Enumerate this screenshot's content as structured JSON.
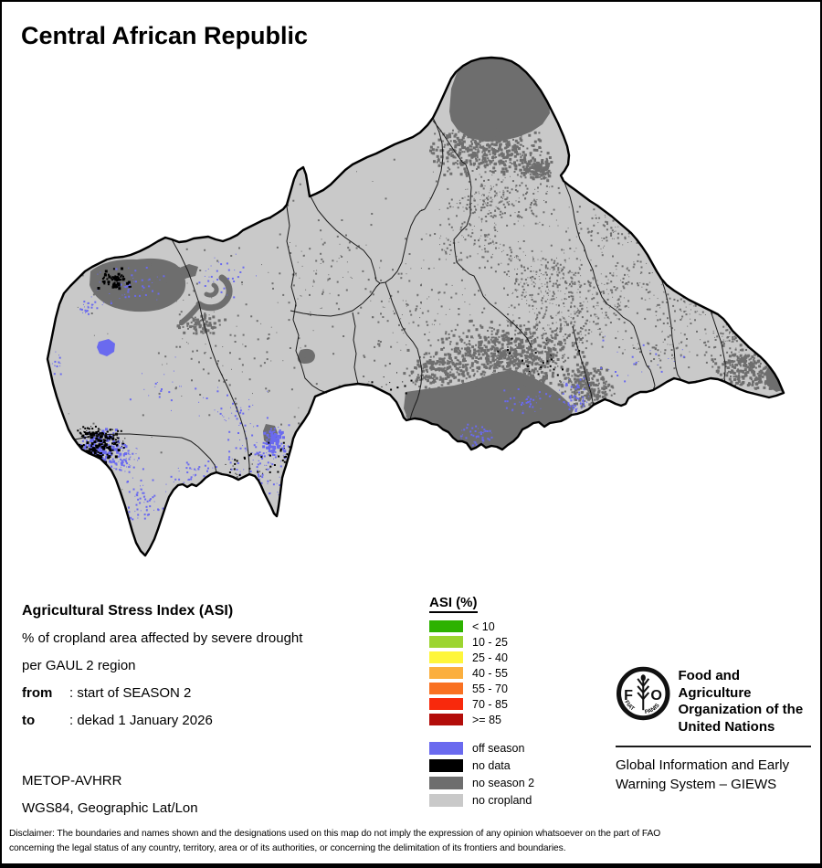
{
  "title": "Central African Republic",
  "info": {
    "heading": "Agricultural Stress Index (ASI)",
    "line1": "% of cropland area affected by severe drought",
    "line2": "per GAUL 2 region",
    "from_label": "from",
    "from_value": ": start of SEASON 2",
    "to_label": "to",
    "to_value": ": dekad 1 January 2026",
    "sensor": "METOP-AVHRR",
    "projection": "WGS84, Geographic Lat/Lon"
  },
  "legend": {
    "title": "ASI (%)",
    "asi_classes": [
      {
        "label": "< 10",
        "color": "#2DB200"
      },
      {
        "label": "10 - 25",
        "color": "#9CD530"
      },
      {
        "label": "25 - 40",
        "color": "#FEF63B"
      },
      {
        "label": "40 - 55",
        "color": "#FBAF3E"
      },
      {
        "label": "55 - 70",
        "color": "#F97122"
      },
      {
        "label": "70 - 85",
        "color": "#F8290C"
      },
      {
        "label": ">= 85",
        "color": "#B30D0A"
      }
    ],
    "other_classes": [
      {
        "label": "off season",
        "color": "#6A6AEF"
      },
      {
        "label": "no data",
        "color": "#000000"
      },
      {
        "label": "no season 2",
        "color": "#6E6E6E"
      },
      {
        "label": "no cropland",
        "color": "#C9C9C9"
      }
    ]
  },
  "org": {
    "logo_letters_left": "F",
    "logo_letters_right": "O",
    "logo_motto_left": "FIAT",
    "logo_motto_right": "PANIS",
    "fao_lines": [
      "Food and Agriculture",
      "Organization of the",
      "United Nations"
    ],
    "giews_lines": [
      "Global Information and Early",
      "Warning System – GIEWS"
    ]
  },
  "disclaimer_lines": [
    "Disclaimer: The boundaries and names shown and the designations used on this map do not imply the expression of any opinion whatsoever on the part of FAO",
    "concerning the legal status of any country, territory, area or of its authorities, or concerning the delimitation of its frontiers and boundaries."
  ]
}
